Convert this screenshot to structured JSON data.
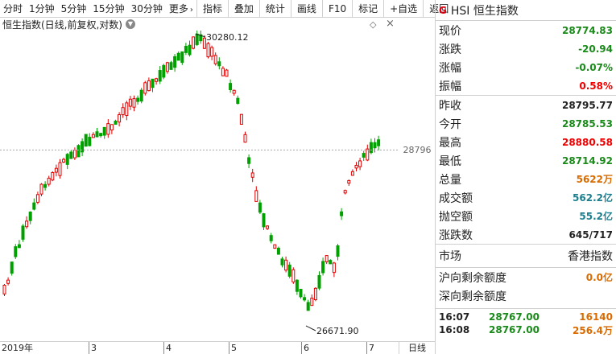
{
  "toolbar": {
    "periods": [
      "分时",
      "1分钟",
      "5分钟",
      "15分钟",
      "30分钟",
      "更多"
    ],
    "more_arrow": "›",
    "buttons": [
      "指标",
      "叠加",
      "统计",
      "画线",
      "F10",
      "标记",
      "+自选",
      "返回"
    ]
  },
  "chart": {
    "title": "恒生指数(日线,前复权,对数)",
    "high_label": "30280.12",
    "low_label": "26671.90",
    "price_line_label": "28796",
    "time_ticks": [
      "2019年",
      "3",
      "4",
      "5",
      "6",
      "7"
    ],
    "period": "日线",
    "up_color": "#e00000",
    "down_color": "#00a000"
  },
  "panel": {
    "symbol_icon": "G",
    "title": "HSI 恒生指数",
    "quotes": [
      {
        "label": "现价",
        "value": "28774.83",
        "color": "green"
      },
      {
        "label": "涨跌",
        "value": "-20.94",
        "color": "green"
      },
      {
        "label": "涨幅",
        "value": "-0.07%",
        "color": "green"
      },
      {
        "label": "振幅",
        "value": "0.58%",
        "color": "red"
      }
    ],
    "stats": [
      {
        "label": "昨收",
        "value": "28795.77",
        "color": "black"
      },
      {
        "label": "今开",
        "value": "28785.53",
        "color": "green"
      },
      {
        "label": "最高",
        "value": "28880.58",
        "color": "red"
      },
      {
        "label": "最低",
        "value": "28714.92",
        "color": "green"
      },
      {
        "label": "总量",
        "value": "5622万",
        "color": "orange"
      },
      {
        "label": "成交额",
        "value": "562.2亿",
        "color": "teal"
      },
      {
        "label": "抛空额",
        "value": "55.2亿",
        "color": "teal"
      },
      {
        "label": "涨跌数",
        "value": "645/717",
        "color": "black"
      }
    ],
    "market_label": "市场",
    "market_value": "香港指数",
    "quota": [
      {
        "label": "沪向剩余额度",
        "value": "0.0亿"
      },
      {
        "label": "深向剩余额度",
        "value": ""
      }
    ],
    "ticks": [
      {
        "time": "16:07",
        "price": "28767.00",
        "volume": "16140"
      },
      {
        "time": "16:08",
        "price": "28767.00",
        "volume": "256.4万"
      }
    ]
  }
}
